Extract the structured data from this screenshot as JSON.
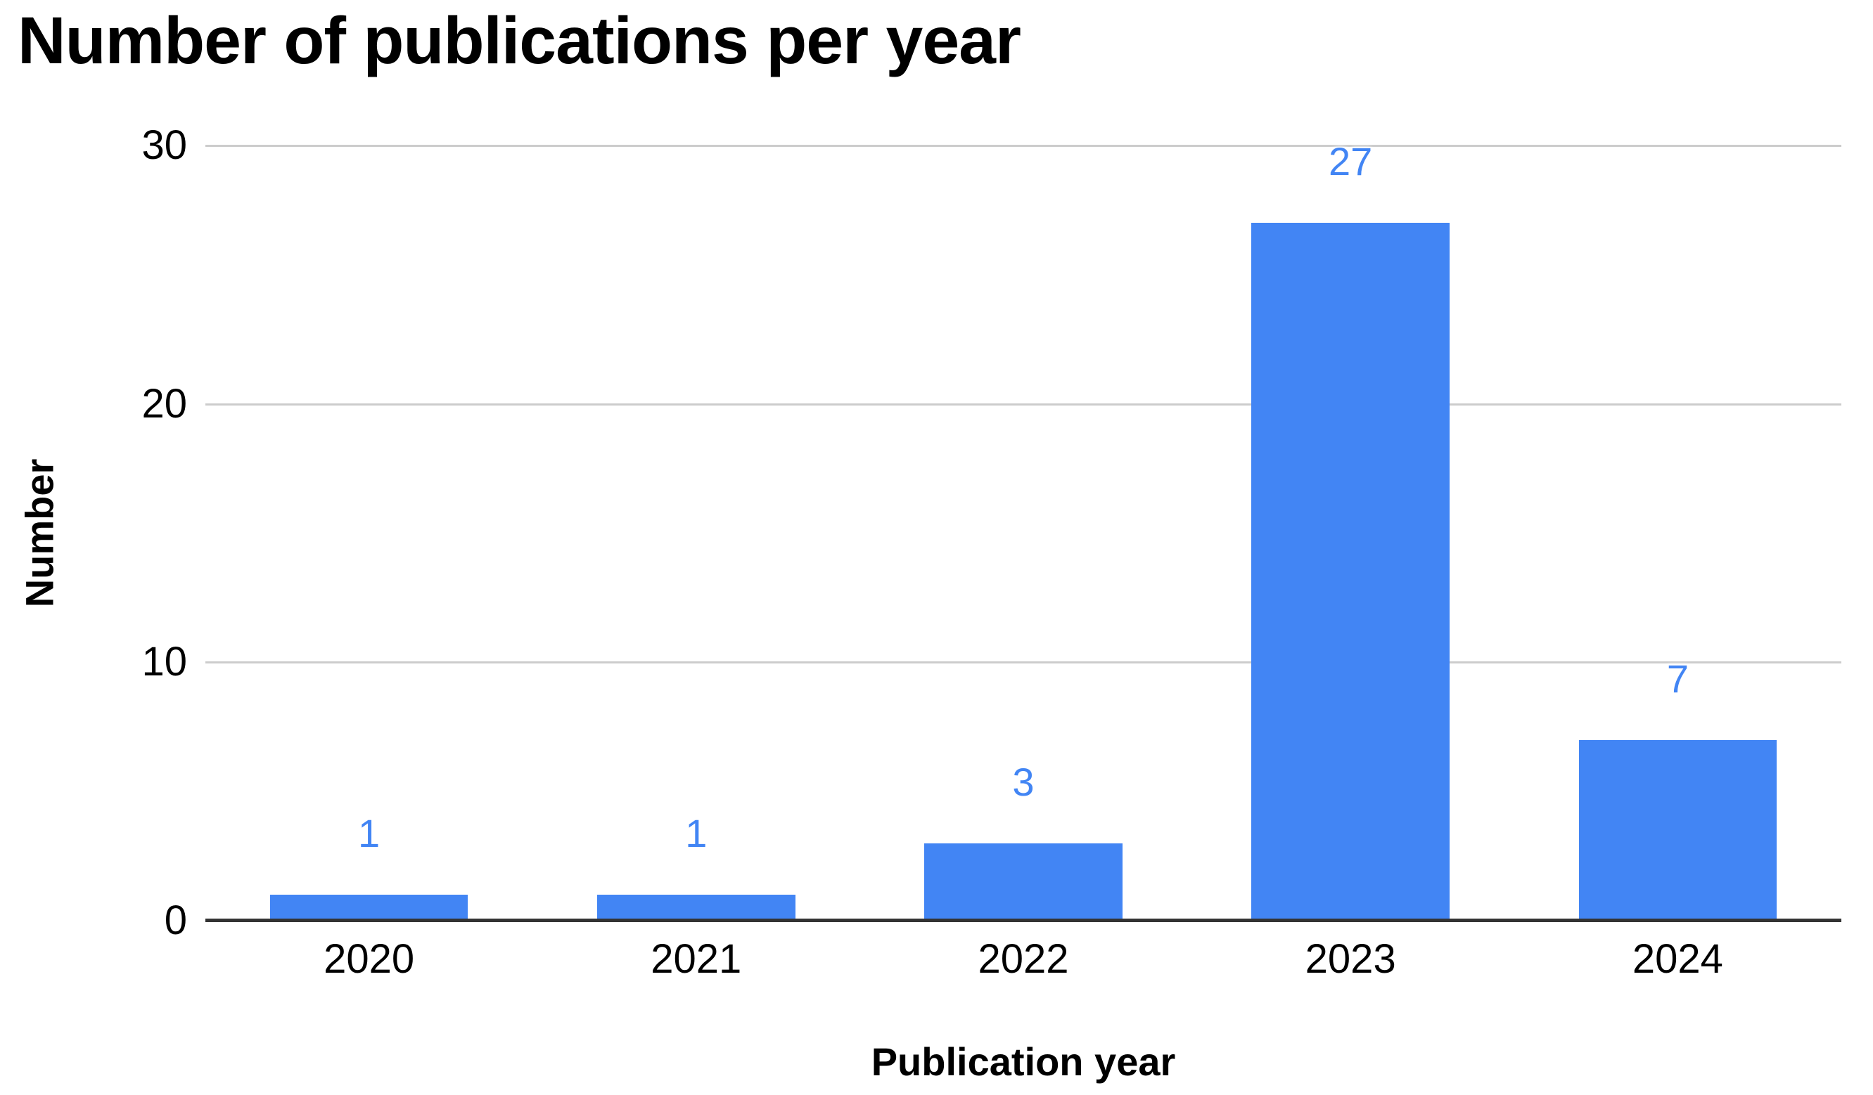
{
  "chart_data": {
    "type": "bar",
    "title": "Number of publications per year",
    "xlabel": "Publication year",
    "ylabel": "Number",
    "categories": [
      "2020",
      "2021",
      "2022",
      "2023",
      "2024"
    ],
    "values": [
      1,
      1,
      3,
      27,
      7
    ],
    "data_labels": [
      "1",
      "1",
      "3",
      "27",
      "7"
    ],
    "ylim": [
      0,
      30
    ],
    "yticks": [
      0,
      10,
      20,
      30
    ],
    "grid": "horizontal-only",
    "legend": "none",
    "colors": {
      "bar": "#4285f4",
      "data_label": "#4285f4",
      "gridline": "#cccccc",
      "axis_line": "#333333",
      "text": "#000000",
      "background": "#ffffff"
    }
  }
}
